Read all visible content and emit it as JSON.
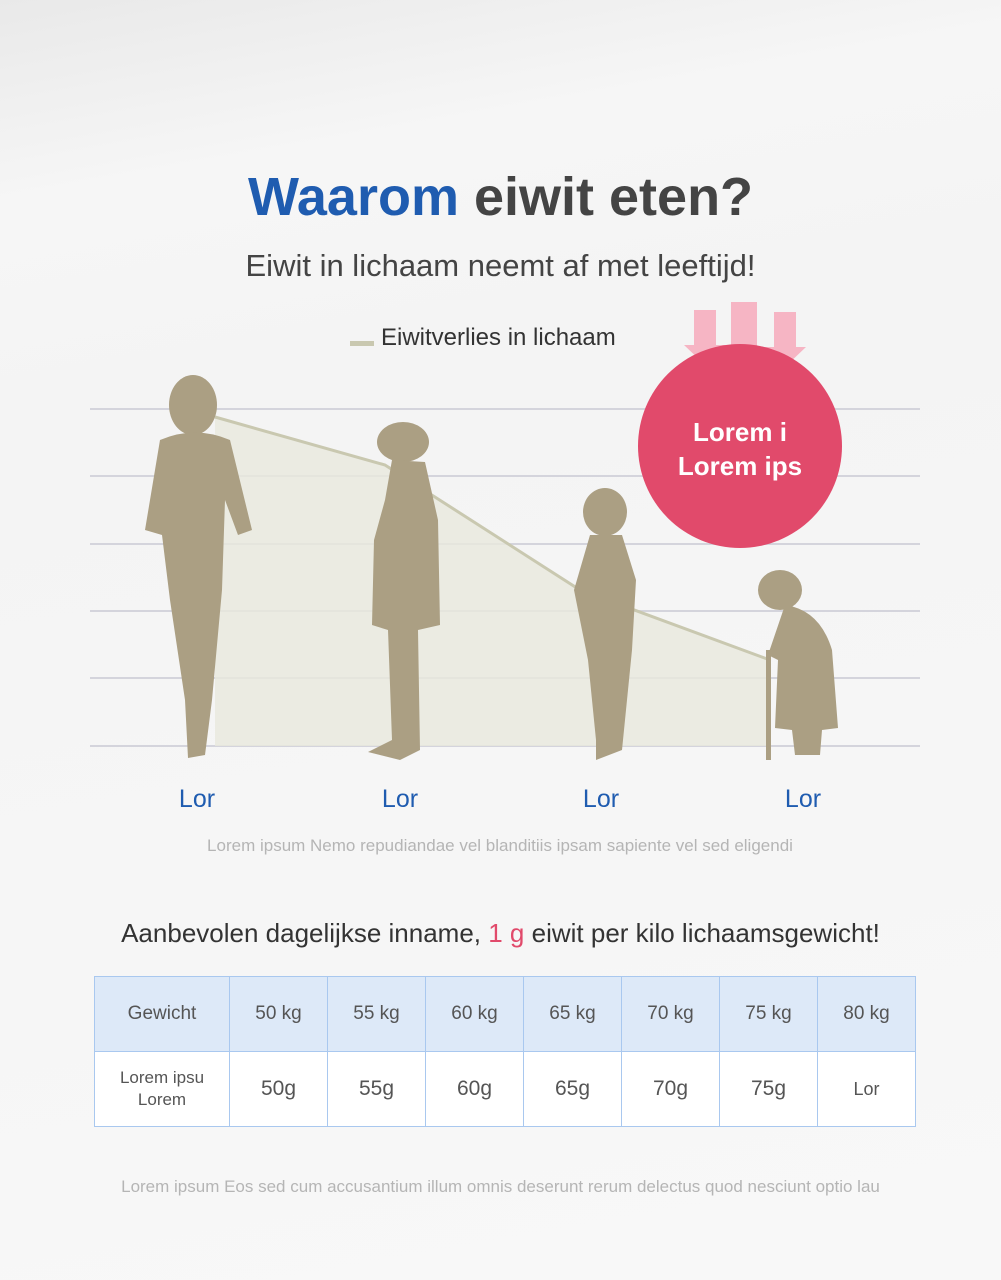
{
  "header": {
    "title_highlight": "Waarom",
    "title_rest": "eiwit eten?",
    "subtitle": "Eiwit in lichaam neemt af met leeftijd!"
  },
  "figure": {
    "legend": "Eiwitverlies in lichaam",
    "badge": [
      "Lorem i",
      "Lorem ips"
    ],
    "age_labels": [
      "Lor",
      "Lor",
      "Lor",
      "Lor"
    ],
    "note": "Lorem ipsum Nemo repudiandae vel blanditiis ipsam sapiente vel sed eligendi"
  },
  "recommendation": {
    "before": "Aanbevolen dagelijkse inname,",
    "highlight": "1 g",
    "after": "eiwit per kilo lichaamsgewicht!"
  },
  "table": {
    "header": [
      "Gewicht",
      "50 kg",
      "55 kg",
      "60 kg",
      "65 kg",
      "70 kg",
      "75 kg",
      "80 kg"
    ],
    "row_label": [
      "Lorem ipsu",
      "Lorem"
    ],
    "row": [
      "50g",
      "55g",
      "60g",
      "65g",
      "70g",
      "75g",
      "Lor"
    ]
  },
  "footer": "Lorem ipsum Eos sed cum accusantium illum omnis deserunt rerum delectus quod nesciunt optio lau"
}
